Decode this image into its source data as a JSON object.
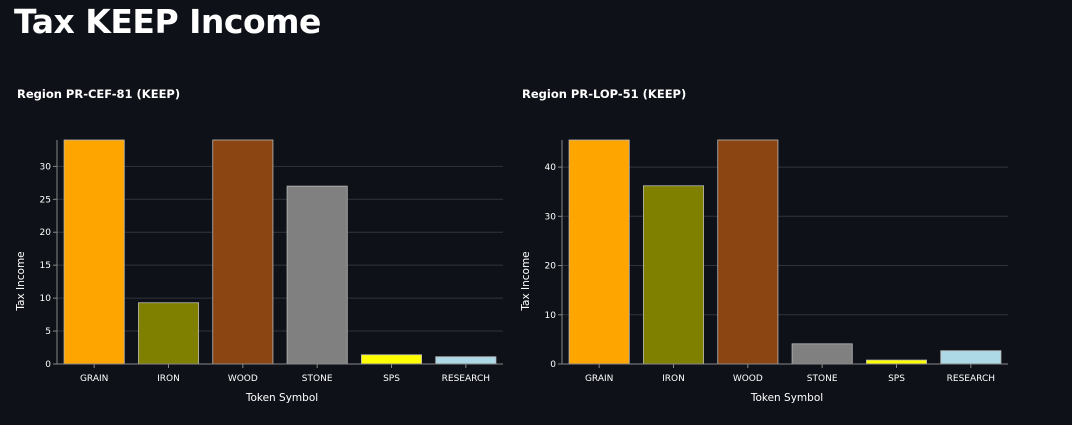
{
  "page": {
    "title": "Tax KEEP Income"
  },
  "chart_data": [
    {
      "type": "bar",
      "title": "Region PR-CEF-81 (KEEP)",
      "xlabel": "Token Symbol",
      "ylabel": "Tax Income",
      "categories": [
        "GRAIN",
        "IRON",
        "WOOD",
        "STONE",
        "SPS",
        "RESEARCH"
      ],
      "values": [
        34,
        9.3,
        34,
        27,
        1.4,
        1.1
      ],
      "colors": [
        "#ffa500",
        "#808000",
        "#8b4513",
        "#808080",
        "#ffff00",
        "#add8e6"
      ],
      "ylim": [
        0,
        34
      ],
      "yticks": [
        0,
        5,
        10,
        15,
        20,
        25,
        30
      ],
      "grid": true,
      "legend": "none"
    },
    {
      "type": "bar",
      "title": "Region PR-LOP-51 (KEEP)",
      "xlabel": "Token Symbol",
      "ylabel": "Tax Income",
      "categories": [
        "GRAIN",
        "IRON",
        "WOOD",
        "STONE",
        "SPS",
        "RESEARCH"
      ],
      "values": [
        45.5,
        36.2,
        45.5,
        4.1,
        0.8,
        2.7
      ],
      "colors": [
        "#ffa500",
        "#808000",
        "#8b4513",
        "#808080",
        "#ffff00",
        "#add8e6"
      ],
      "ylim": [
        0,
        45.5
      ],
      "yticks": [
        0,
        10,
        20,
        30,
        40
      ],
      "grid": true,
      "legend": "none"
    }
  ]
}
